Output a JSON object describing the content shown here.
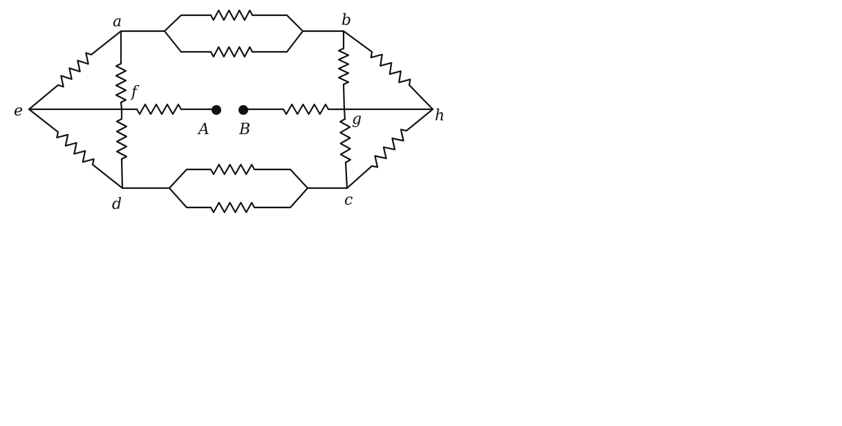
{
  "diagram": {
    "nodes": {
      "a": "a",
      "b": "b",
      "c": "c",
      "d": "d",
      "e": "e",
      "f": "f",
      "g": "g",
      "h": "h"
    },
    "terminals": {
      "A": "A",
      "B": "B"
    },
    "colors": {
      "ink": "#111111",
      "background": "#ffffff"
    }
  }
}
